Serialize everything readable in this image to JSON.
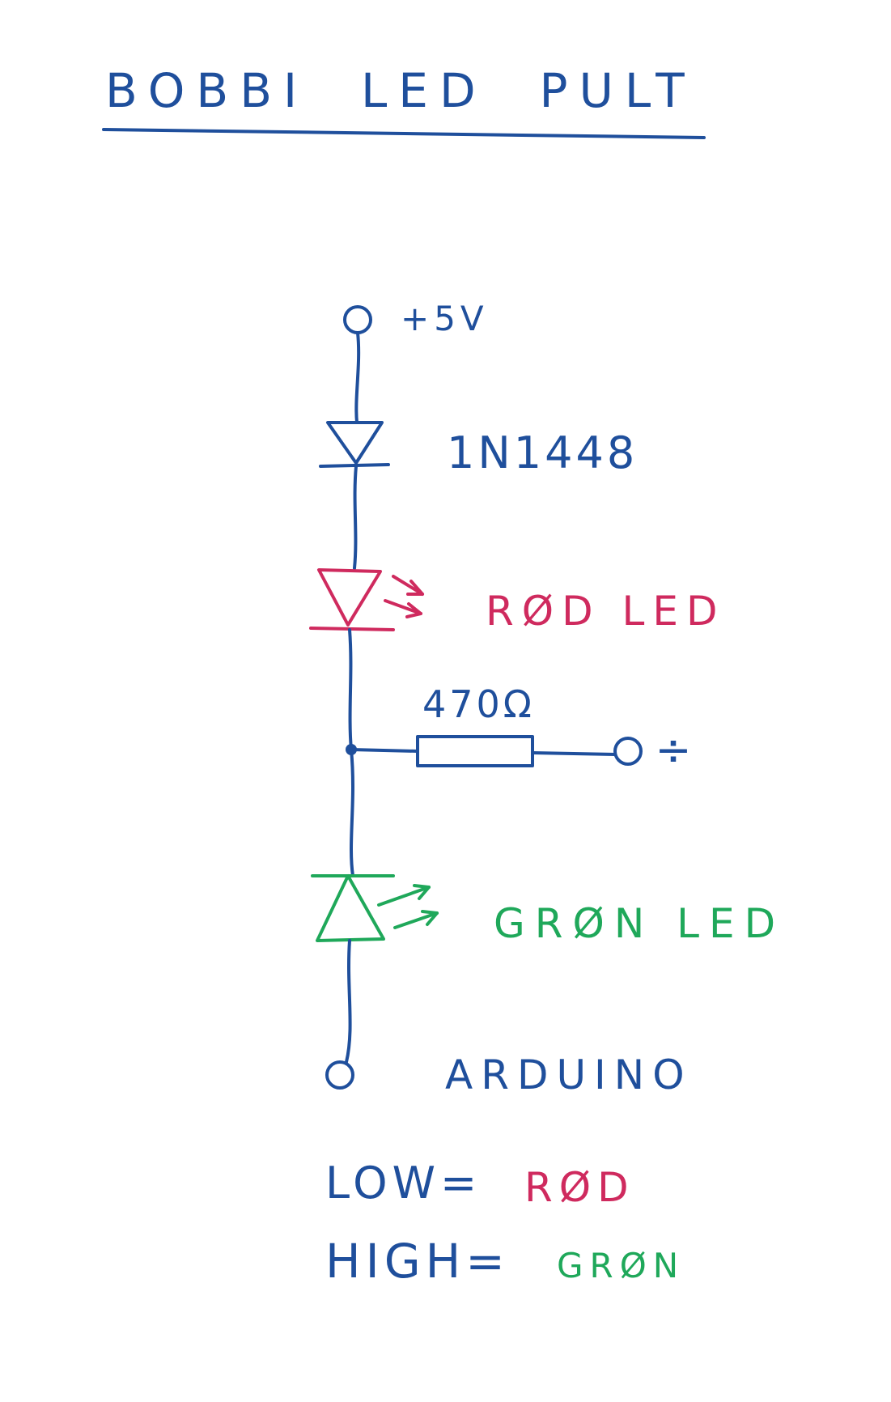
{
  "title": "BOBBI  LED  PULT",
  "colors": {
    "ink_blue": "#1f4f9c",
    "ink_red": "#cf2a5e",
    "ink_green": "#1fa85a"
  },
  "labels": {
    "supply": "+5V",
    "diode": "1N1448",
    "red_led": "RØD LED",
    "resistor": "470Ω",
    "ground": "÷",
    "green_led": "GRØN LED",
    "input": "ARDUINO"
  },
  "legend": {
    "low_key": "LOW=",
    "low_value": "RØD",
    "high_key": "HIGH=",
    "high_value": "GRØN"
  }
}
